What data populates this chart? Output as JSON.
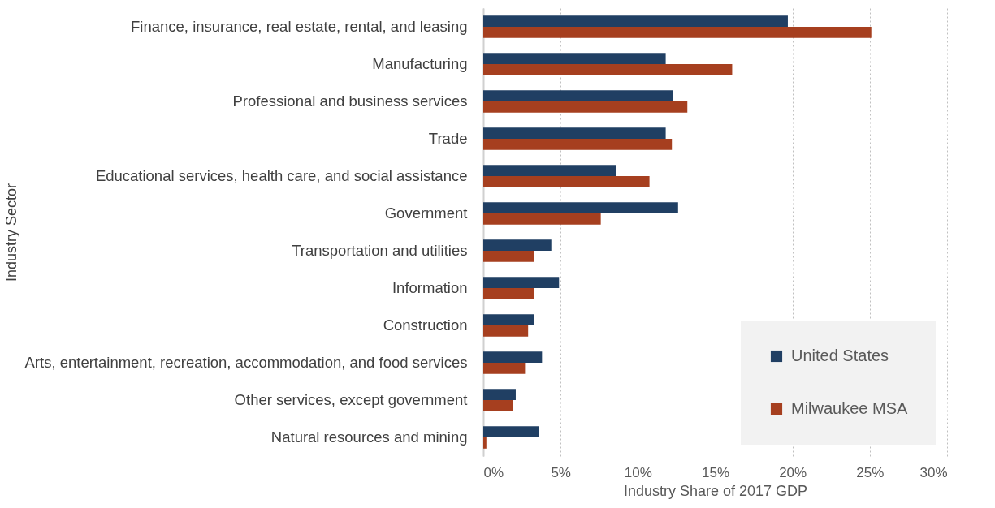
{
  "chart_data": {
    "type": "bar",
    "orientation": "horizontal",
    "xlabel": "Industry Share of 2017 GDP",
    "ylabel": "Industry Sector",
    "categories": [
      "Finance, insurance, real estate, rental, and leasing",
      "Manufacturing",
      "Professional and business services",
      "Trade",
      "Educational services, health care, and social assistance",
      "Government",
      "Transportation and utilities",
      "Information",
      "Construction",
      "Arts, entertainment, recreation, accommodation, and food services",
      "Other services, except government",
      "Natural resources and mining"
    ],
    "series": [
      {
        "name": "United States",
        "color": "#203f63",
        "values": [
          19.7,
          11.8,
          12.25,
          11.8,
          8.6,
          12.6,
          4.4,
          4.9,
          3.3,
          3.8,
          2.1,
          3.6
        ]
      },
      {
        "name": "Milwaukee MSA",
        "color": "#a63f1f",
        "values": [
          25.1,
          16.1,
          13.2,
          12.2,
          10.75,
          7.6,
          3.3,
          3.3,
          2.9,
          2.7,
          1.9,
          0.2
        ]
      }
    ],
    "xlim": [
      0,
      30
    ],
    "xticks": [
      {
        "value": 0,
        "label": "0%"
      },
      {
        "value": 5,
        "label": "5%"
      },
      {
        "value": 10,
        "label": "10%"
      },
      {
        "value": 15,
        "label": "15%"
      },
      {
        "value": 20,
        "label": "20%"
      },
      {
        "value": 25,
        "label": "25%"
      },
      {
        "value": 30,
        "label": "30%"
      }
    ],
    "grid": "x",
    "legend": "bottom right"
  }
}
